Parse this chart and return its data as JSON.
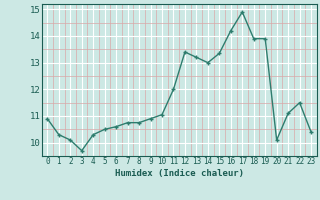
{
  "x": [
    0,
    1,
    2,
    3,
    4,
    5,
    6,
    7,
    8,
    9,
    10,
    11,
    12,
    13,
    14,
    15,
    16,
    17,
    18,
    19,
    20,
    21,
    22,
    23
  ],
  "y": [
    10.9,
    10.3,
    10.1,
    9.7,
    10.3,
    10.5,
    10.6,
    10.75,
    10.75,
    10.9,
    11.05,
    12.0,
    13.4,
    13.2,
    13.0,
    13.35,
    14.2,
    14.9,
    13.9,
    13.9,
    10.1,
    11.1,
    11.5,
    10.4
  ],
  "xlabel": "Humidex (Indice chaleur)",
  "ylim": [
    9.5,
    15.2
  ],
  "xlim": [
    -0.5,
    23.5
  ],
  "yticks": [
    10,
    11,
    12,
    13,
    14,
    15
  ],
  "xticks": [
    0,
    1,
    2,
    3,
    4,
    5,
    6,
    7,
    8,
    9,
    10,
    11,
    12,
    13,
    14,
    15,
    16,
    17,
    18,
    19,
    20,
    21,
    22,
    23
  ],
  "line_color": "#2e7d6e",
  "marker_color": "#2e7d6e",
  "bg_color": "#cce8e4",
  "grid_major_color": "#ffffff",
  "grid_minor_color": "#d9a8a8"
}
